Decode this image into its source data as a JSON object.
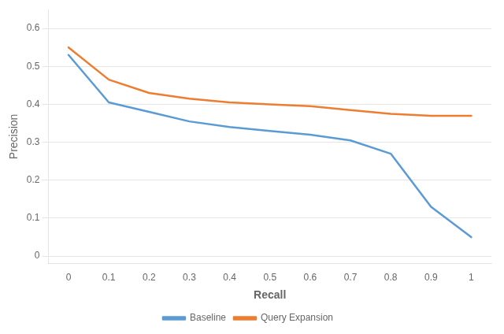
{
  "chart_data": {
    "type": "line",
    "xlabel": "Recall",
    "ylabel": "Precision",
    "x": [
      0,
      0.1,
      0.2,
      0.3,
      0.4,
      0.5,
      0.6,
      0.7,
      0.8,
      0.9,
      1.0
    ],
    "series": [
      {
        "name": "Baseline",
        "color": "#5B9BD5",
        "values": [
          0.53,
          0.405,
          0.38,
          0.355,
          0.34,
          0.33,
          0.32,
          0.305,
          0.27,
          0.13,
          0.05
        ]
      },
      {
        "name": "Query Expansion",
        "color": "#ED7D31",
        "values": [
          0.55,
          0.465,
          0.43,
          0.415,
          0.405,
          0.4,
          0.395,
          0.385,
          0.375,
          0.37,
          0.37
        ]
      }
    ],
    "xlim": [
      -0.05,
      1.05
    ],
    "ylim": [
      -0.02,
      0.65
    ],
    "xticks": [
      0,
      0.1,
      0.2,
      0.3,
      0.4,
      0.5,
      0.6,
      0.7,
      0.8,
      0.9,
      1
    ],
    "yticks": [
      0,
      0.1,
      0.2,
      0.3,
      0.4,
      0.5,
      0.6
    ],
    "grid": "y",
    "legend": "bottom"
  }
}
